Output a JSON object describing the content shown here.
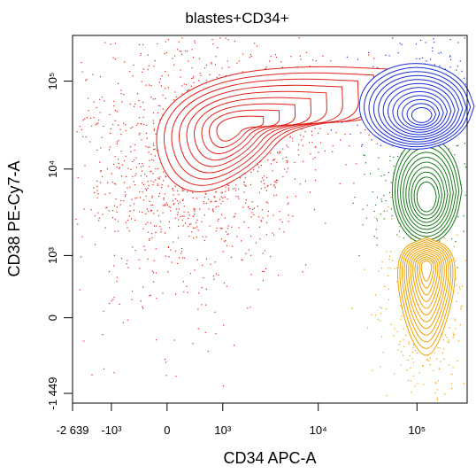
{
  "chart_data": {
    "type": "contour",
    "title": "blastes+CD34+",
    "x_label": "CD34 APC-A",
    "y_label": "CD38 PE-Cy7-A",
    "xscale": "asinh",
    "yscale": "asinh",
    "xlim": [
      -2639,
      262144
    ],
    "ylim": [
      -1449,
      262144
    ],
    "xticks": [
      {
        "value": -2639,
        "label": "-2 639"
      },
      {
        "value": -1000,
        "label": "-10³"
      },
      0,
      {
        "value": 1000,
        "label": "10³"
      },
      {
        "value": 10000,
        "label": "10⁴"
      },
      {
        "value": 100000,
        "label": "10⁵"
      }
    ],
    "yticks": [
      {
        "value": -1449,
        "label": "-1 449"
      },
      0,
      {
        "value": 1000,
        "label": "10³"
      },
      {
        "value": 10000,
        "label": "10⁴"
      },
      {
        "value": 100000,
        "label": "10⁵"
      }
    ]
  }
}
